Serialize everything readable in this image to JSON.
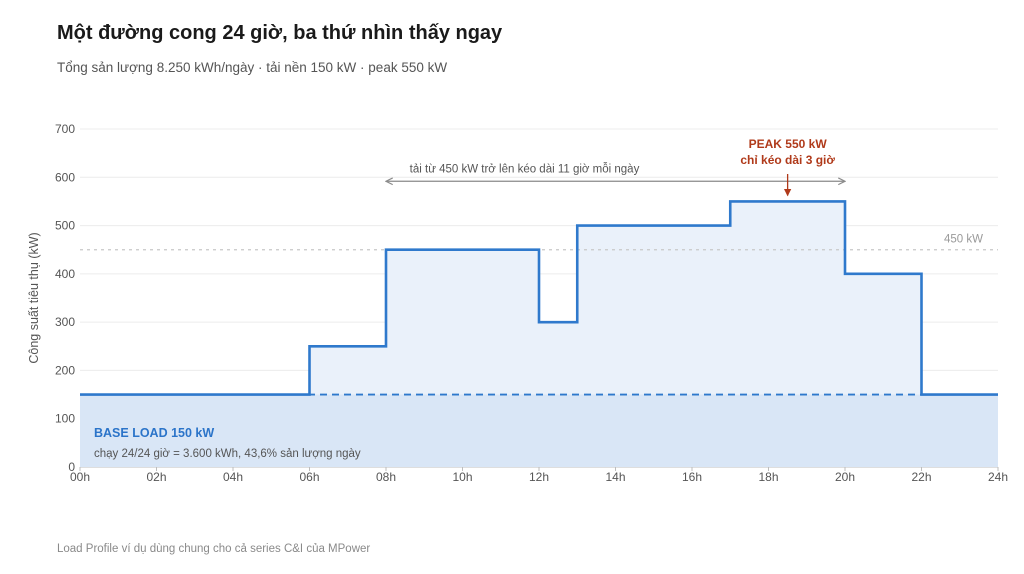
{
  "title": "Một đường cong 24 giờ, ba thứ nhìn thấy ngay",
  "subtitle": "Tổng sản lượng 8.250 kWh/ngày · tải nền 150 kW · peak 550 kW",
  "footer": "Load Profile ví dụ dùng chung cho cả series C&I của MPower",
  "colors": {
    "line": "#2f79cc",
    "area": "#eaf1fa",
    "base_area": "#d6e4f5",
    "peak": "#b03a1a",
    "span_arrow": "#8a8a8a",
    "reference_line": "#c8c8c8",
    "grid": "#ececec"
  },
  "chart_data": {
    "type": "area",
    "ylabel": "Công suất tiêu thụ (kW)",
    "xlabel": "",
    "ylim": [
      0,
      700
    ],
    "xlim": [
      0,
      24
    ],
    "grid": "horizontal",
    "y_ticks": [
      {
        "value": 0,
        "label": "0"
      },
      {
        "value": 100,
        "label": "100"
      },
      {
        "value": 200,
        "label": "200"
      },
      {
        "value": 300,
        "label": "300"
      },
      {
        "value": 400,
        "label": "400"
      },
      {
        "value": 500,
        "label": "500"
      },
      {
        "value": 600,
        "label": "600"
      },
      {
        "value": 700,
        "label": "700"
      }
    ],
    "x_ticks": [
      {
        "value": 0,
        "label": "00h"
      },
      {
        "value": 2,
        "label": "02h"
      },
      {
        "value": 4,
        "label": "04h"
      },
      {
        "value": 6,
        "label": "06h"
      },
      {
        "value": 8,
        "label": "08h"
      },
      {
        "value": 10,
        "label": "10h"
      },
      {
        "value": 12,
        "label": "12h"
      },
      {
        "value": 14,
        "label": "14h"
      },
      {
        "value": 16,
        "label": "16h"
      },
      {
        "value": 18,
        "label": "18h"
      },
      {
        "value": 20,
        "label": "20h"
      },
      {
        "value": 22,
        "label": "22h"
      },
      {
        "value": 24,
        "label": "24h"
      }
    ],
    "series": [
      {
        "step": "post",
        "points": [
          {
            "hour": 0,
            "kw": 150
          },
          {
            "hour": 6,
            "kw": 250
          },
          {
            "hour": 8,
            "kw": 450
          },
          {
            "hour": 12,
            "kw": 300
          },
          {
            "hour": 13,
            "kw": 500
          },
          {
            "hour": 17,
            "kw": 550
          },
          {
            "hour": 20,
            "kw": 400
          },
          {
            "hour": 22,
            "kw": 150
          },
          {
            "hour": 24,
            "kw": 150
          }
        ]
      }
    ],
    "base_load": {
      "value": 150,
      "label": "BASE LOAD 150 kW",
      "note": "chạy 24/24 giờ = 3.600 kWh, 43,6% sản lượng ngày"
    },
    "reference_line": {
      "value": 450,
      "label": "450 kW"
    },
    "annotations": [
      {
        "id": "span",
        "text": "tải từ 450 kW trở lên kéo dài 11 giờ mỗi ngày",
        "from_hour": 8,
        "to_hour": 20,
        "at_kw": 600
      },
      {
        "id": "peak",
        "lines": [
          "PEAK 550 kW",
          "chỉ kéo dài 3 giờ"
        ],
        "hour": 18.5,
        "kw": 550
      }
    ]
  }
}
